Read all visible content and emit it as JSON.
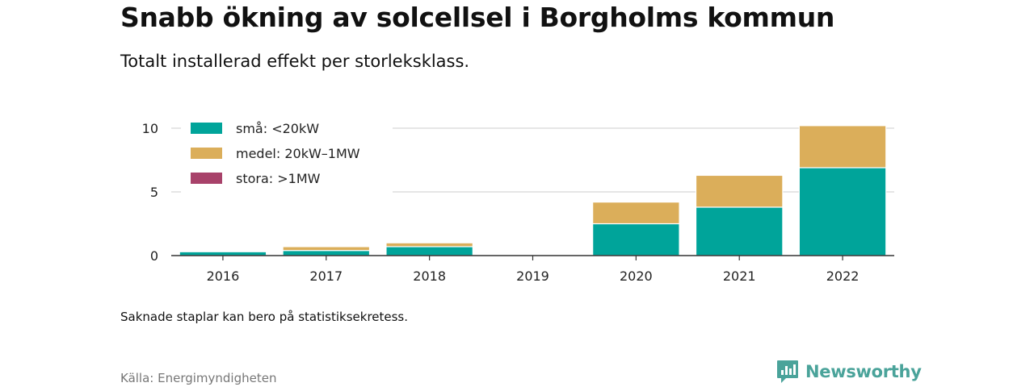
{
  "header": {
    "title": "Snabb ökning av solcellsel i Borgholms kommun",
    "subtitle": "Totalt installerad effekt per storleksklass."
  },
  "footer": {
    "note": "Saknade staplar kan bero på statistiksekretess.",
    "source": "Källa: Energimyndigheten",
    "brand": "Newsworthy"
  },
  "colors": {
    "small": "#00a49a",
    "medium": "#dbae5a",
    "large": "#a8426a",
    "brand": "#4aa39a",
    "grid": "#dddddd",
    "axis": "#333333"
  },
  "chart_data": {
    "type": "bar",
    "stacked": true,
    "categories": [
      "2016",
      "2017",
      "2018",
      "2019",
      "2020",
      "2021",
      "2022"
    ],
    "series": [
      {
        "name": "små: <20kW",
        "color": "#00a49a",
        "values": [
          0.3,
          0.4,
          0.7,
          0,
          2.5,
          3.8,
          6.9
        ]
      },
      {
        "name": "medel: 20kW–1MW",
        "color": "#dbae5a",
        "values": [
          0,
          0.3,
          0.3,
          0,
          1.7,
          2.5,
          3.3
        ]
      },
      {
        "name": "stora: >1MW",
        "color": "#a8426a",
        "values": [
          0,
          0,
          0,
          0,
          0,
          0,
          0
        ]
      }
    ],
    "yticks": [
      0,
      5,
      10
    ],
    "ylim": [
      0,
      10.5
    ],
    "grid": true,
    "legend_position": "top-left"
  }
}
